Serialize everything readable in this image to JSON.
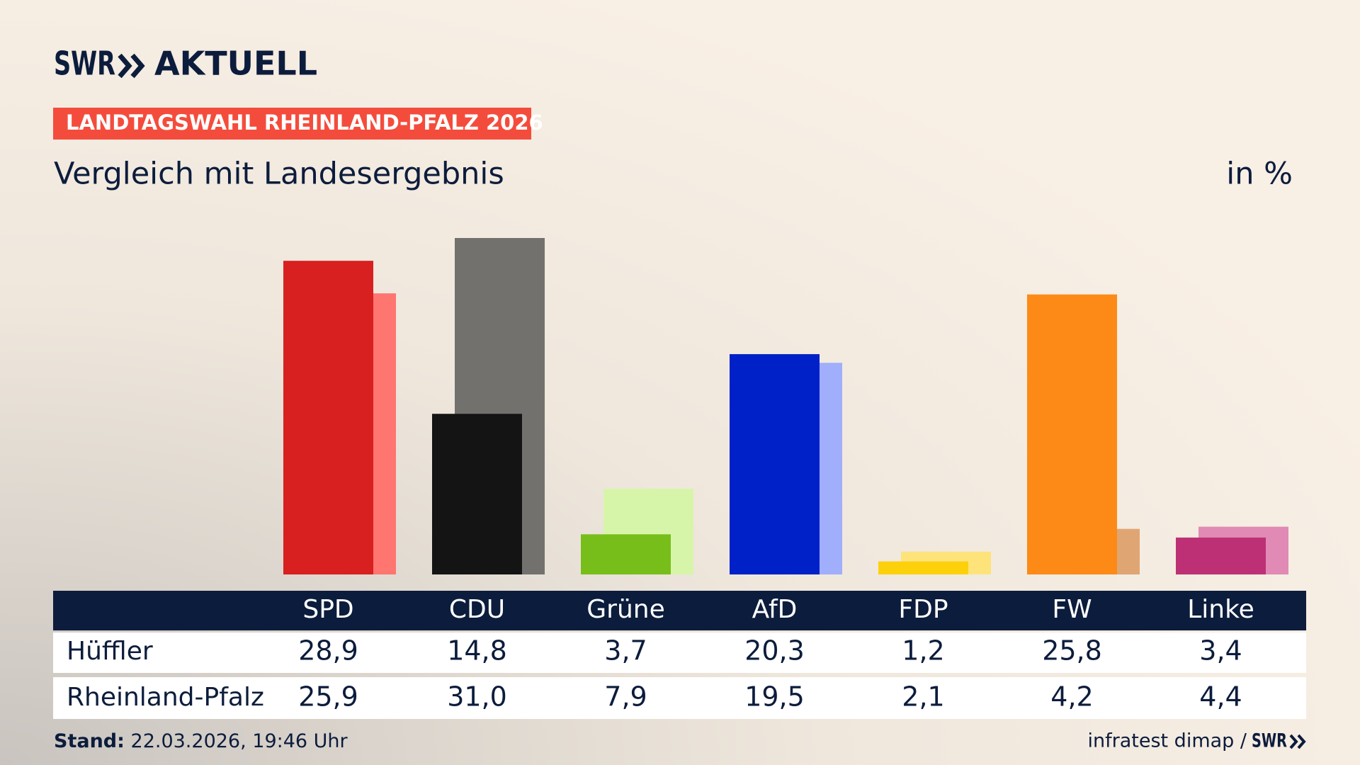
{
  "brand": {
    "name": "SWR",
    "product": "AKTUELL"
  },
  "banner": "LANDTAGSWAHL RHEINLAND-PFALZ 2026",
  "chart_data": {
    "type": "bar",
    "title": "Vergleich mit Landesergebnis",
    "unit": "in %",
    "categories": [
      "SPD",
      "CDU",
      "Grüne",
      "AfD",
      "FDP",
      "FW",
      "Linke"
    ],
    "series": [
      {
        "name": "Hüffler",
        "colors": [
          "#d7201f",
          "#141414",
          "#78be1a",
          "#0021c8",
          "#fcd10b",
          "#fd8a17",
          "#bd3076"
        ],
        "values": [
          28.9,
          14.8,
          3.7,
          20.3,
          1.2,
          25.8,
          3.4
        ],
        "value_labels": [
          "28,9",
          "14,8",
          "3,7",
          "20,3",
          "1,2",
          "25,8",
          "3,4"
        ]
      },
      {
        "name": "Rheinland-Pfalz",
        "colors": [
          "#ff7570",
          "#73716e",
          "#d7f5a9",
          "#a0aefc",
          "#fde37a",
          "#dfa673",
          "#e08ab5"
        ],
        "values": [
          25.9,
          31.0,
          7.9,
          19.5,
          2.1,
          4.2,
          4.4
        ],
        "value_labels": [
          "25,9",
          "31,0",
          "7,9",
          "19,5",
          "2,1",
          "4,2",
          "4,4"
        ]
      }
    ]
  },
  "footer": {
    "stand_label": "Stand:",
    "stand_value": "22.03.2026, 19:46 Uhr",
    "source": "infratest dimap /",
    "source_logo": "SWR"
  }
}
